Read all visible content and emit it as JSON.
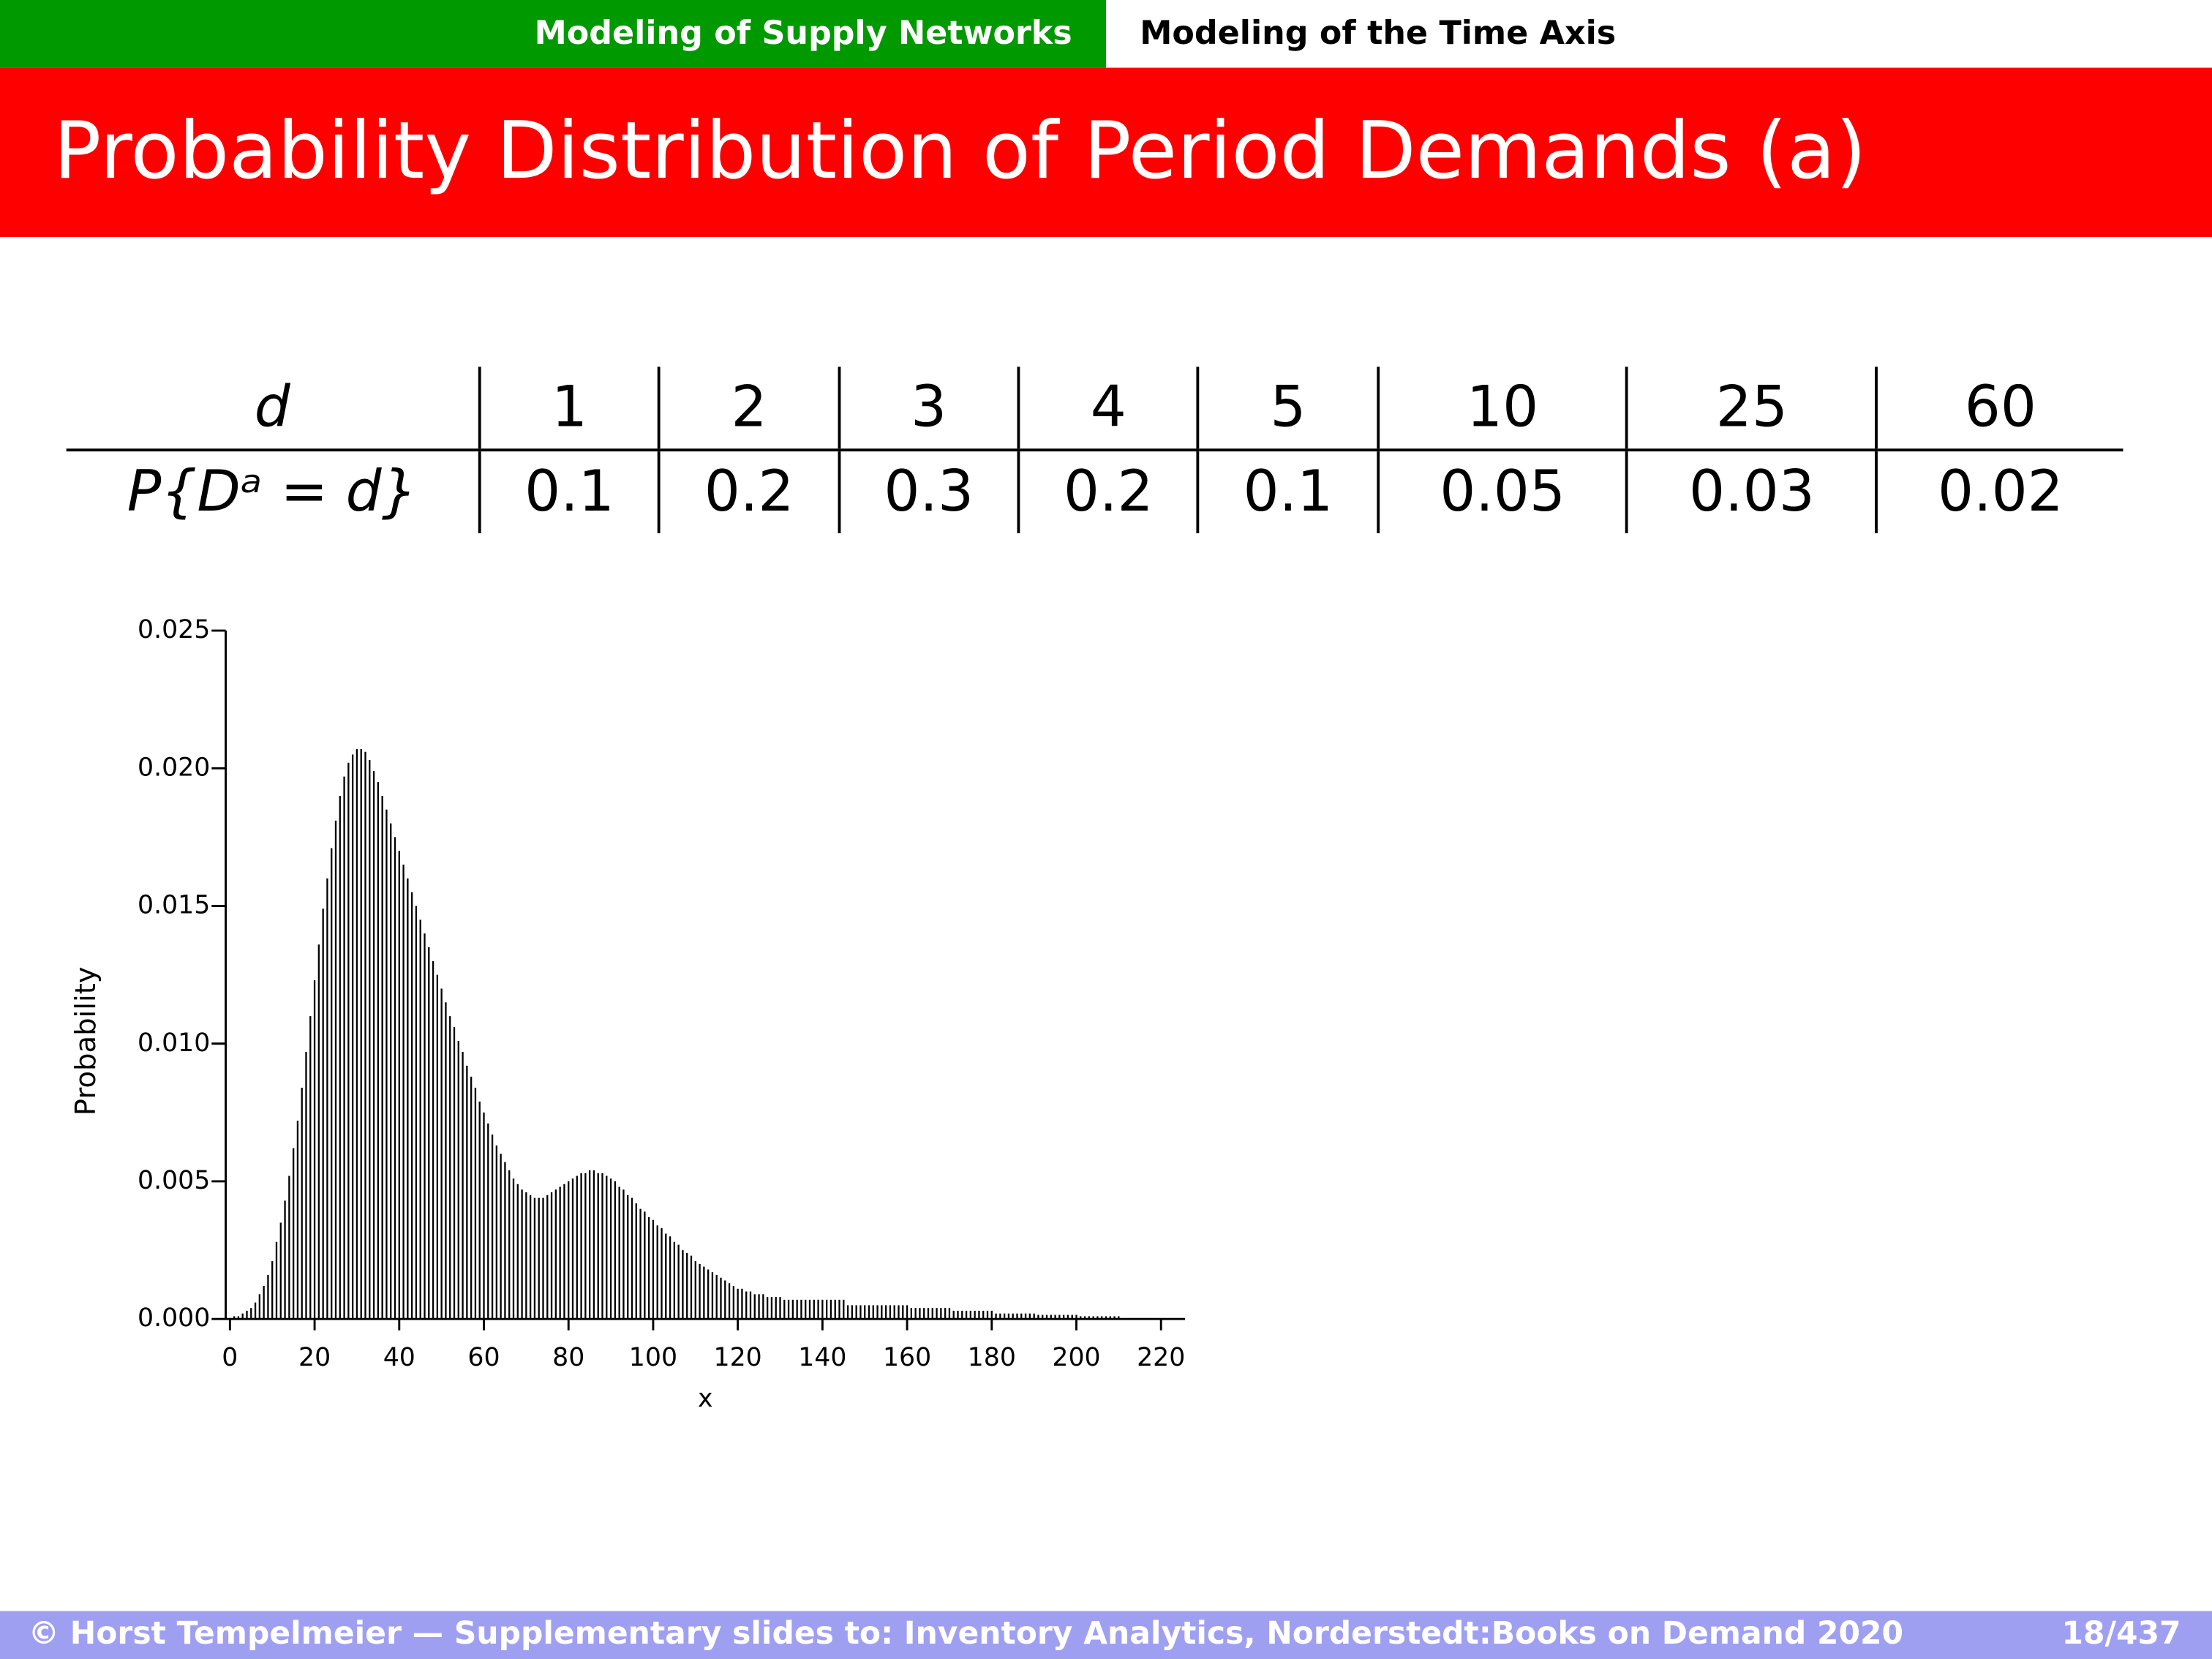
{
  "header": {
    "sections": [
      "Modeling of Supply Networks",
      "Modeling of the Time Axis"
    ]
  },
  "title": "Probability Distribution of Period Demands (a)",
  "table": {
    "rows": [
      [
        "d",
        "1",
        "2",
        "3",
        "4",
        "5",
        "10",
        "25",
        "60"
      ],
      [
        "P{Dᵃ = d}",
        "0.1",
        "0.2",
        "0.3",
        "0.2",
        "0.1",
        "0.05",
        "0.03",
        "0.02"
      ]
    ]
  },
  "chart_data": {
    "type": "bar",
    "xlabel": "x",
    "ylabel": "Probability",
    "color": "#000000",
    "xlim": [
      0,
      220
    ],
    "ylim": [
      0,
      0.025
    ],
    "xticks": [
      0,
      20,
      40,
      60,
      80,
      100,
      120,
      140,
      160,
      180,
      200,
      220
    ],
    "yticks": [
      {
        "value": 0,
        "label": "0.000"
      },
      {
        "value": 0.005,
        "label": "0.005"
      },
      {
        "value": 0.01,
        "label": "0.010"
      },
      {
        "value": 0.015,
        "label": "0.015"
      },
      {
        "value": 0.02,
        "label": "0.020"
      },
      {
        "value": 0.025,
        "label": "0.025"
      }
    ],
    "x": [
      1,
      2,
      3,
      4,
      5,
      6,
      7,
      8,
      9,
      10,
      11,
      12,
      13,
      14,
      15,
      16,
      17,
      18,
      19,
      20,
      21,
      22,
      23,
      24,
      25,
      26,
      27,
      28,
      29,
      30,
      31,
      32,
      33,
      34,
      35,
      36,
      37,
      38,
      39,
      40,
      41,
      42,
      43,
      44,
      45,
      46,
      47,
      48,
      49,
      50,
      51,
      52,
      53,
      54,
      55,
      56,
      57,
      58,
      59,
      60,
      61,
      62,
      63,
      64,
      65,
      66,
      67,
      68,
      69,
      70,
      71,
      72,
      73,
      74,
      75,
      76,
      77,
      78,
      79,
      80,
      81,
      82,
      83,
      84,
      85,
      86,
      87,
      88,
      89,
      90,
      91,
      92,
      93,
      94,
      95,
      96,
      97,
      98,
      99,
      100,
      101,
      102,
      103,
      104,
      105,
      106,
      107,
      108,
      109,
      110,
      111,
      112,
      113,
      114,
      115,
      116,
      117,
      118,
      119,
      120,
      121,
      122,
      123,
      124,
      125,
      126,
      127,
      128,
      129,
      130,
      131,
      132,
      133,
      134,
      135,
      136,
      137,
      138,
      139,
      140,
      141,
      142,
      143,
      144,
      145,
      146,
      147,
      148,
      149,
      150,
      151,
      152,
      153,
      154,
      155,
      156,
      157,
      158,
      159,
      160,
      161,
      162,
      163,
      164,
      165,
      166,
      167,
      168,
      169,
      170,
      171,
      172,
      173,
      174,
      175,
      176,
      177,
      178,
      179,
      180,
      181,
      182,
      183,
      184,
      185,
      186,
      187,
      188,
      189,
      190,
      191,
      192,
      193,
      194,
      195,
      196,
      197,
      198,
      199,
      200,
      201,
      202,
      203,
      204,
      205,
      206,
      207,
      208,
      209,
      210
    ],
    "values": [
      0.0001,
      0.0001,
      0.0002,
      0.0003,
      0.0004,
      0.0006,
      0.0009,
      0.0012,
      0.0016,
      0.0021,
      0.0028,
      0.0035,
      0.0043,
      0.0052,
      0.0062,
      0.0072,
      0.0084,
      0.0097,
      0.011,
      0.0123,
      0.0136,
      0.0149,
      0.016,
      0.0171,
      0.0181,
      0.019,
      0.0197,
      0.0202,
      0.0205,
      0.0207,
      0.0207,
      0.0206,
      0.0203,
      0.0199,
      0.0195,
      0.019,
      0.0185,
      0.018,
      0.0175,
      0.017,
      0.0165,
      0.016,
      0.0155,
      0.015,
      0.0145,
      0.014,
      0.0135,
      0.013,
      0.0125,
      0.012,
      0.0115,
      0.011,
      0.0106,
      0.0101,
      0.0097,
      0.0092,
      0.0088,
      0.0084,
      0.0079,
      0.0075,
      0.0071,
      0.0067,
      0.0063,
      0.006,
      0.0057,
      0.0054,
      0.0051,
      0.0049,
      0.0047,
      0.0046,
      0.0045,
      0.0044,
      0.0044,
      0.0044,
      0.0045,
      0.0046,
      0.0047,
      0.0048,
      0.0049,
      0.005,
      0.0051,
      0.0052,
      0.0053,
      0.0053,
      0.0054,
      0.0054,
      0.0053,
      0.0053,
      0.0052,
      0.0051,
      0.005,
      0.0048,
      0.0047,
      0.0045,
      0.0044,
      0.0042,
      0.004,
      0.0039,
      0.0037,
      0.0036,
      0.0034,
      0.0033,
      0.0031,
      0.003,
      0.0028,
      0.0027,
      0.0025,
      0.0024,
      0.0023,
      0.0021,
      0.002,
      0.0019,
      0.0018,
      0.0017,
      0.0016,
      0.0015,
      0.0014,
      0.0013,
      0.0012,
      0.0011,
      0.0011,
      0.001,
      0.001,
      0.0009,
      0.0009,
      0.0009,
      0.0008,
      0.0008,
      0.0008,
      0.0008,
      0.0007,
      0.0007,
      0.0007,
      0.0007,
      0.0007,
      0.0007,
      0.0007,
      0.0007,
      0.0007,
      0.0007,
      0.0007,
      0.0007,
      0.0007,
      0.0007,
      0.0007,
      0.0005,
      0.0005,
      0.0005,
      0.0005,
      0.0005,
      0.0005,
      0.0005,
      0.0005,
      0.0005,
      0.0005,
      0.0005,
      0.0005,
      0.0005,
      0.0005,
      0.0005,
      0.0004,
      0.0004,
      0.0004,
      0.0004,
      0.0004,
      0.0004,
      0.0004,
      0.0004,
      0.0004,
      0.0004,
      0.0003,
      0.0003,
      0.0003,
      0.0003,
      0.0003,
      0.0003,
      0.0003,
      0.0003,
      0.0003,
      0.0003,
      0.0002,
      0.0002,
      0.0002,
      0.0002,
      0.0002,
      0.0002,
      0.0002,
      0.0002,
      0.0002,
      0.0002,
      0.00015,
      0.00015,
      0.00015,
      0.00015,
      0.00015,
      0.00015,
      0.00015,
      0.00015,
      0.00015,
      0.00015,
      0.0001,
      0.0001,
      0.0001,
      0.0001,
      0.0001,
      0.0001,
      0.0001,
      0.0001,
      0.0001,
      0.0001
    ]
  },
  "footer": {
    "text": "© Horst Tempelmeier — Supplementary slides to: Inventory Analytics, Norderstedt:Books on Demand 2020",
    "page": "18/437"
  }
}
